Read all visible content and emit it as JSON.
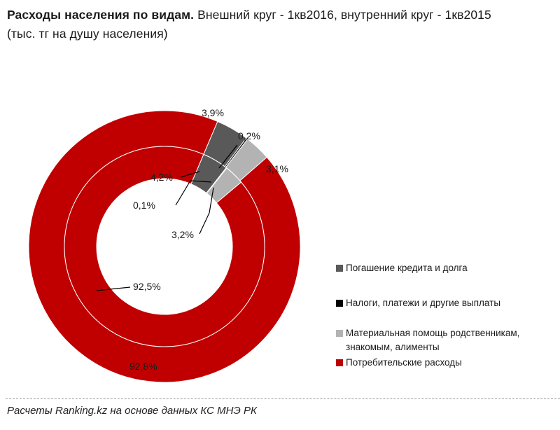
{
  "title": {
    "bold": "Расходы населения по видам.",
    "rest": "Внешний круг - 1кв2016, внутренний круг - 1кв2015 (тыс. тг на душу населения)"
  },
  "chart_data": {
    "type": "pie",
    "rings": [
      {
        "name": "1кв2016",
        "position": "outer",
        "values": [
          3.9,
          0.2,
          3.1,
          92.8
        ],
        "labels": [
          "3,9%",
          "0,2%",
          "3,1%",
          "92,8%"
        ]
      },
      {
        "name": "1кв2015",
        "position": "inner",
        "values": [
          4.2,
          0.1,
          3.2,
          92.5
        ],
        "labels": [
          "4,2%",
          "0,1%",
          "3,2%",
          "92,5%"
        ]
      }
    ],
    "categories": [
      "Погашение кредита и долга",
      "Налоги, платежи и другие выплаты",
      "Материальная помощь родственникам, знакомым, алименты",
      "Потребительские расходы"
    ],
    "colors": [
      "#595959",
      "#000000",
      "#b3b3b3",
      "#c00000"
    ],
    "legend_position": "right"
  },
  "legend": {
    "items": [
      {
        "label": "Погашение кредита и долга",
        "color": "#595959"
      },
      {
        "label": "Налоги, платежи и другие выплаты",
        "color": "#000000"
      },
      {
        "label": "Материальная помощь родственникам, знакомым, алименты",
        "color": "#b3b3b3"
      },
      {
        "label": "Потребительские расходы",
        "color": "#c00000"
      }
    ]
  },
  "footer": "Расчеты Ranking.kz на основе данных КС МНЭ РК"
}
